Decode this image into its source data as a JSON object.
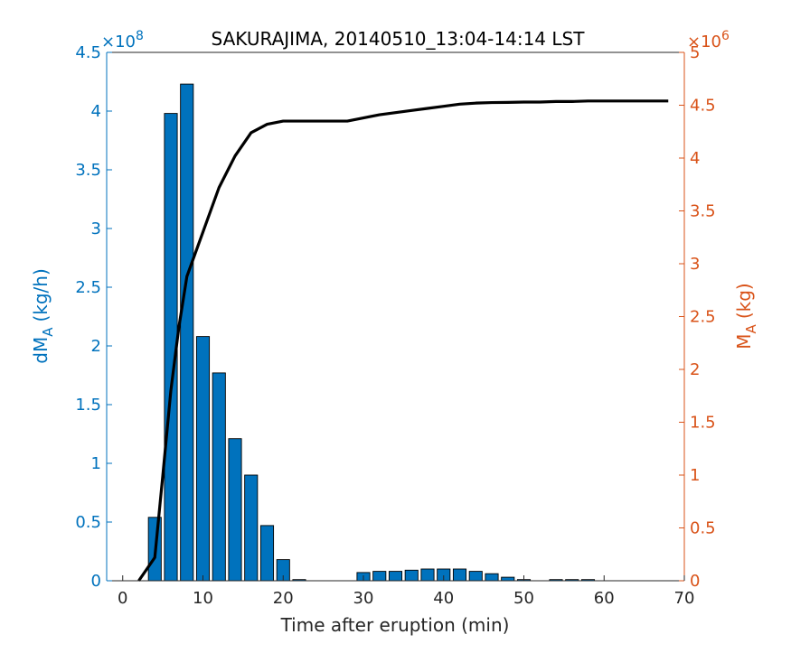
{
  "chart_data": {
    "type": "bar+line",
    "title": "SAKURAJIMA, 20140510_13:04-14:14 LST",
    "xlabel": "Time after eruption (min)",
    "xlim": [
      -2,
      70
    ],
    "xticks": [
      0,
      10,
      20,
      30,
      40,
      50,
      60,
      70
    ],
    "left_axis": {
      "label_main": "dM",
      "label_sub": "A",
      "label_unit": "(kg/h)",
      "exponent_base": "×10",
      "exponent_power": "8",
      "ylim": [
        0,
        4.5
      ],
      "ticks": [
        0,
        0.5,
        1,
        1.5,
        2,
        2.5,
        3,
        3.5,
        4,
        4.5
      ],
      "tick_labels": [
        "0",
        "0.5",
        "1",
        "1.5",
        "2",
        "2.5",
        "3",
        "3.5",
        "4",
        "4.5"
      ],
      "color": "#0072BD"
    },
    "right_axis": {
      "label_main": "M",
      "label_sub": "A",
      "label_unit": "(kg)",
      "exponent_base": "×10",
      "exponent_power": "6",
      "ylim": [
        0,
        5
      ],
      "ticks": [
        0,
        0.5,
        1,
        1.5,
        2,
        2.5,
        3,
        3.5,
        4,
        4.5,
        5
      ],
      "tick_labels": [
        "0",
        "0.5",
        "1",
        "1.5",
        "2",
        "2.5",
        "3",
        "3.5",
        "4",
        "4.5",
        "5"
      ],
      "color": "#D95319"
    },
    "bars": {
      "axis": "left",
      "color": "#0072BD",
      "edge_color": "#000000",
      "width": 1.6,
      "x": [
        0,
        2,
        4,
        6,
        8,
        10,
        12,
        14,
        16,
        18,
        20,
        22,
        24,
        26,
        28,
        30,
        32,
        34,
        36,
        38,
        40,
        42,
        44,
        46,
        48,
        50,
        52,
        54,
        56,
        58
      ],
      "values": [
        0,
        0,
        0.54,
        3.98,
        4.23,
        2.08,
        1.77,
        1.21,
        0.9,
        0.47,
        0.18,
        0.01,
        0,
        0,
        0,
        0.07,
        0.08,
        0.08,
        0.09,
        0.1,
        0.1,
        0.1,
        0.08,
        0.06,
        0.03,
        0.01,
        0,
        0.01,
        0.01,
        0.01
      ]
    },
    "line": {
      "axis": "right",
      "color": "#000000",
      "x": [
        2,
        4,
        5,
        6,
        7,
        8,
        10,
        12,
        14,
        16,
        18,
        20,
        22,
        24,
        26,
        28,
        30,
        32,
        34,
        36,
        38,
        40,
        42,
        44,
        46,
        48,
        50,
        52,
        54,
        56,
        58,
        60,
        62,
        64,
        66,
        68
      ],
      "values": [
        0,
        0.22,
        1.0,
        1.8,
        2.4,
        2.88,
        3.3,
        3.72,
        4.02,
        4.24,
        4.32,
        4.35,
        4.35,
        4.35,
        4.35,
        4.35,
        4.38,
        4.41,
        4.43,
        4.45,
        4.47,
        4.49,
        4.51,
        4.52,
        4.525,
        4.527,
        4.53,
        4.53,
        4.535,
        4.535,
        4.54,
        4.54,
        4.54,
        4.54,
        4.54,
        4.54
      ]
    },
    "grid": false,
    "legend": "none"
  }
}
